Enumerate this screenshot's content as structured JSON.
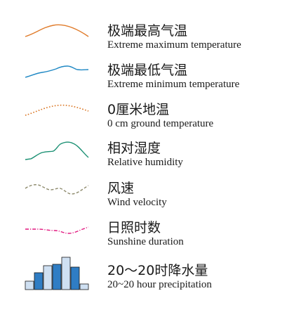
{
  "legend": {
    "items": [
      {
        "zh": "极端最高气温",
        "en": "Extreme maximum temperature",
        "color": "#e07b2a",
        "line": "solid",
        "icon": "orange-solid-curve"
      },
      {
        "zh": "极端最低气温",
        "en": "Extreme minimum temperature",
        "color": "#1f88c4",
        "line": "solid",
        "icon": "blue-solid-curve"
      },
      {
        "zh": "0厘米地温",
        "en": "0 cm ground temperature",
        "color": "#d9731f",
        "line": "dotted",
        "icon": "orange-dotted-curve"
      },
      {
        "zh": "相对湿度",
        "en": "Relative humidity",
        "color": "#1a9073",
        "line": "solid",
        "icon": "green-solid-curve"
      },
      {
        "zh": "风速",
        "en": "Wind velocity",
        "color": "#8d8a6c",
        "line": "dashed",
        "icon": "olive-dashed-curve"
      },
      {
        "zh": "日照时数",
        "en": "Sunshine duration",
        "color": "#e2177f",
        "line": "dash-dot",
        "icon": "magenta-dashdot-curve"
      },
      {
        "zh": "20～20时降水量",
        "en": "20~20 hour precipitation",
        "icon": "precipitation-bars",
        "bar_colors": [
          "#cfe0f2",
          "#2f7dc4",
          "#cfe0f2",
          "#2f7dc4",
          "#cfe0f2",
          "#2f7dc4",
          "#cfe0f2"
        ]
      }
    ]
  }
}
